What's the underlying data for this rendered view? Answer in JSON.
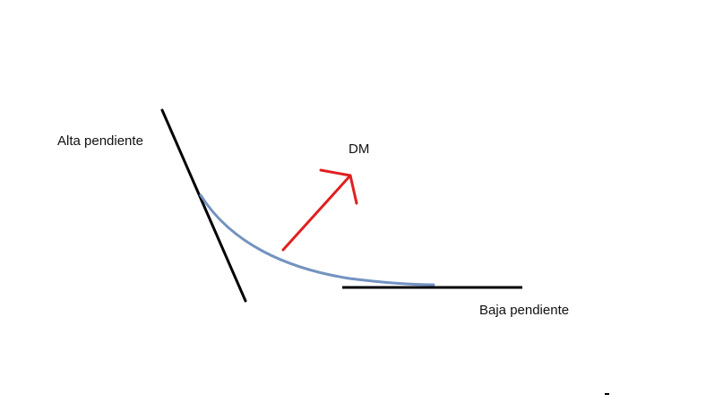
{
  "labels": {
    "high_slope": "Alta pendiente",
    "dm": "DM",
    "low_slope": "Baja pendiente"
  },
  "colors": {
    "tangent_lines": "#000000",
    "curve": "#7393c0",
    "arrow": "#e02020"
  }
}
